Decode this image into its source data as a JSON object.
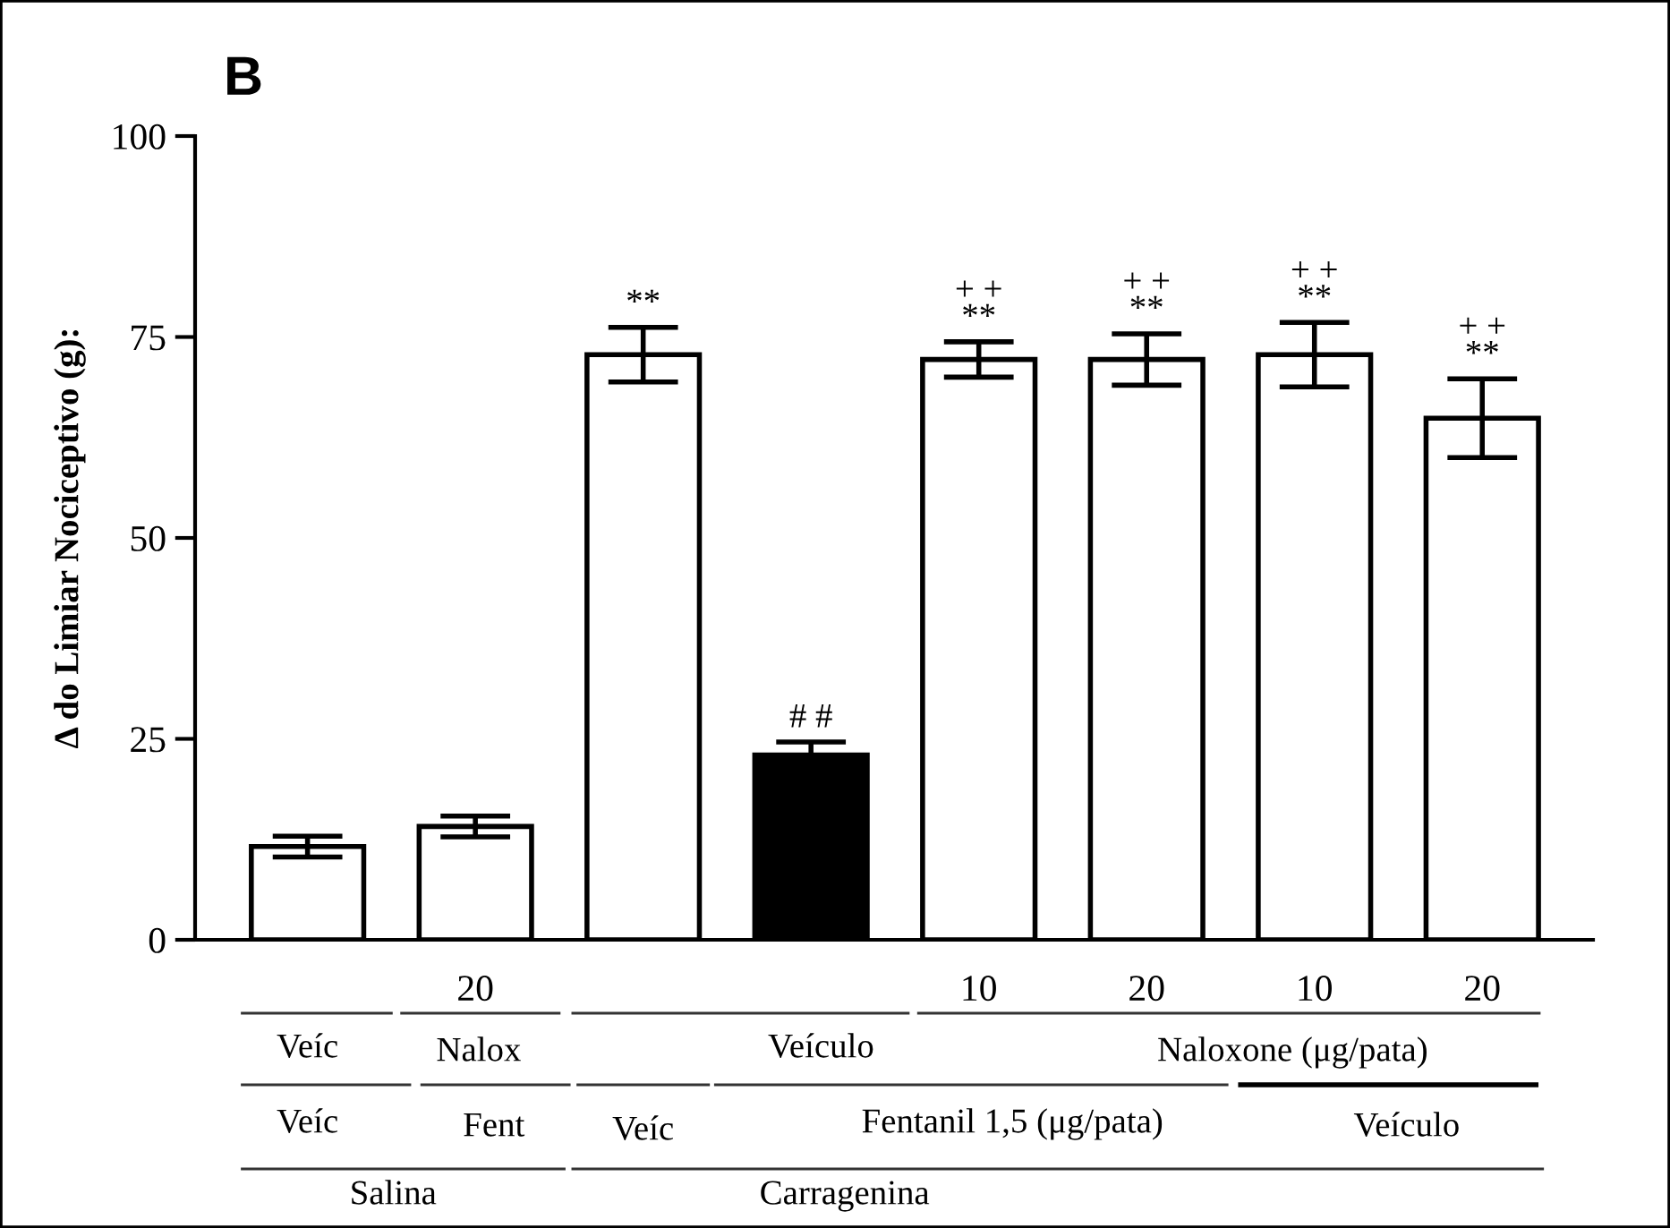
{
  "chart_data": {
    "type": "bar",
    "title": "B",
    "ylabel": "Δ do Limiar Nociceptivo (g):",
    "categories": [
      null,
      "20",
      null,
      null,
      "10",
      "20",
      "10",
      "20"
    ],
    "values": [
      11.6,
      14.1,
      72.8,
      23.0,
      72.2,
      72.2,
      72.8,
      64.9
    ],
    "errors": [
      1.3,
      1.3,
      3.4,
      1.6,
      2.2,
      3.2,
      4.0,
      4.9
    ],
    "colors": [
      "#ffffff",
      "#ffffff",
      "#ffffff",
      "#000000",
      "#ffffff",
      "#ffffff",
      "#ffffff",
      "#ffffff"
    ],
    "ylim": [
      0,
      100
    ],
    "yticks": [
      0,
      25,
      50,
      75,
      100
    ],
    "grid": false,
    "legend": false,
    "annotations": [
      "**",
      "# #",
      "+ +\n**",
      "+ +\n**",
      "+ +\n**",
      "+ +\n**",
      "Veíc",
      "Nalox",
      "Veículo",
      "Naloxone (μg/pata)",
      "Veíc",
      "Fent",
      "Veíc",
      "Fentanil 1,5 (μg/pata)",
      "Veículo",
      "Salina",
      "Carragenina"
    ]
  }
}
